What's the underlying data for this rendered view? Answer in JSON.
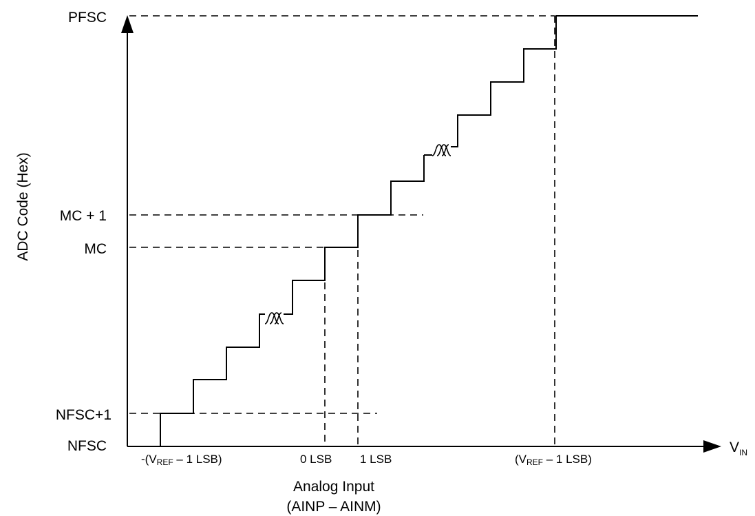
{
  "diagram": {
    "y_axis_title": "ADC Code (Hex)",
    "y_labels": {
      "pfsc": "PFSC",
      "mc_plus_1": "MC + 1",
      "mc": "MC",
      "nfsc_plus_1": "NFSC+1",
      "nfsc": "NFSC"
    },
    "x_labels": {
      "neg_vref": {
        "pre": "-(V",
        "sub": "REF",
        "post": " – 1 LSB)"
      },
      "zero_lsb": "0 LSB",
      "one_lsb": "1 LSB",
      "pos_vref": {
        "pre": "(V",
        "sub": "REF",
        "post": " – 1 LSB)"
      }
    },
    "vin": {
      "main": "V",
      "sub": "IN"
    },
    "x_axis_title": {
      "line1": "Analog Input",
      "line2": "(AINP – AINM)"
    },
    "transfer_levels": [
      "NFSC",
      "NFSC+1",
      "MC",
      "MC + 1",
      "PFSC"
    ],
    "transfer_thresholds": [
      "-(VREF – 1 LSB)",
      "0 LSB",
      "1 LSB",
      "(VREF – 1 LSB)"
    ]
  }
}
